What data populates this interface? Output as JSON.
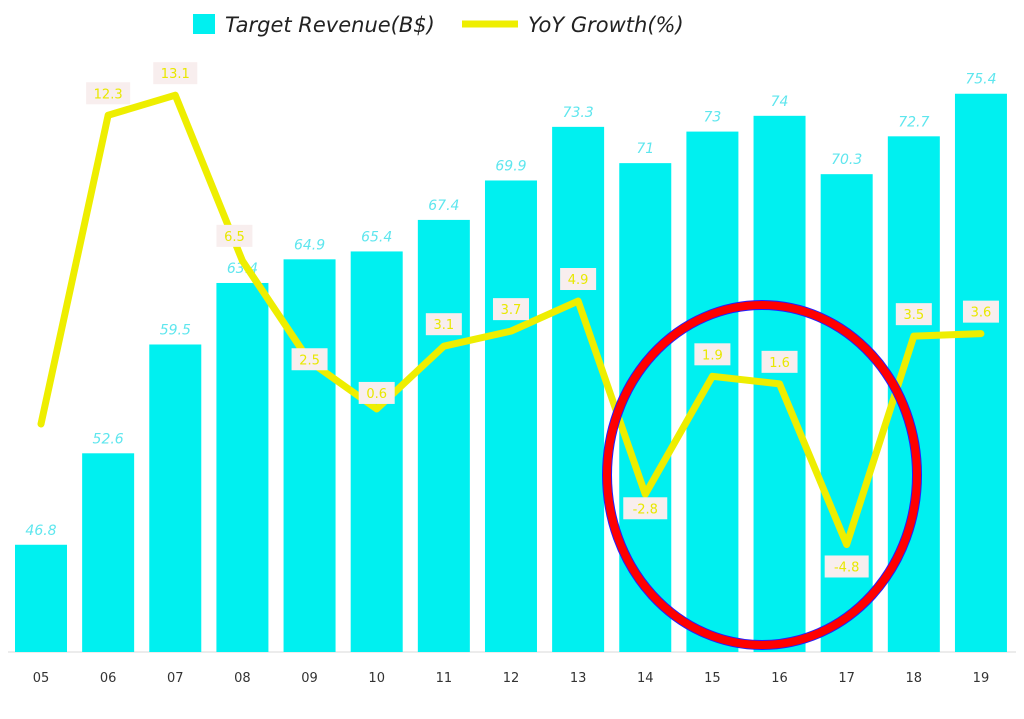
{
  "chart_data": {
    "type": "bar",
    "categories": [
      "05",
      "06",
      "07",
      "08",
      "09",
      "10",
      "11",
      "12",
      "13",
      "14",
      "15",
      "16",
      "17",
      "18",
      "19"
    ],
    "series": [
      {
        "name": "Target Revenue(B$)",
        "type": "bar",
        "color": "#00f0f0",
        "values": [
          46.8,
          52.6,
          59.5,
          63.4,
          64.9,
          65.4,
          67.4,
          69.9,
          73.3,
          71,
          73,
          74,
          70.3,
          72.7,
          75.4
        ],
        "labels": [
          "46.8",
          "52.6",
          "59.5",
          "63.4",
          "64.9",
          "65.4",
          "67.4",
          "69.9",
          "73.3",
          "71",
          "73",
          "74",
          "70.3",
          "72.7",
          "75.4"
        ]
      },
      {
        "name": "YoY Growth(%)",
        "type": "line",
        "color": "#eeee00",
        "values": [
          0,
          12.3,
          13.1,
          6.5,
          2.5,
          0.6,
          3.1,
          3.7,
          4.9,
          -2.8,
          1.9,
          1.6,
          -4.8,
          3.5,
          3.6
        ],
        "labels": [
          "",
          "12.3",
          "13.1",
          "6.5",
          "2.5",
          "0.6",
          "3.1",
          "3.7",
          "4.9",
          "-2.8",
          "1.9",
          "1.6",
          "-4.8",
          "3.5",
          "3.6"
        ]
      }
    ],
    "legend": [
      "Target Revenue(B$)",
      "YoY Growth(%)"
    ],
    "legend_position": "top-center",
    "ylim_bar": [
      40,
      76
    ],
    "ylim_line": [
      -9,
      17
    ],
    "grid": false,
    "annotation": {
      "type": "circle",
      "color": "#ff0000",
      "highlights": [
        "14",
        "15",
        "16",
        "17"
      ]
    }
  }
}
